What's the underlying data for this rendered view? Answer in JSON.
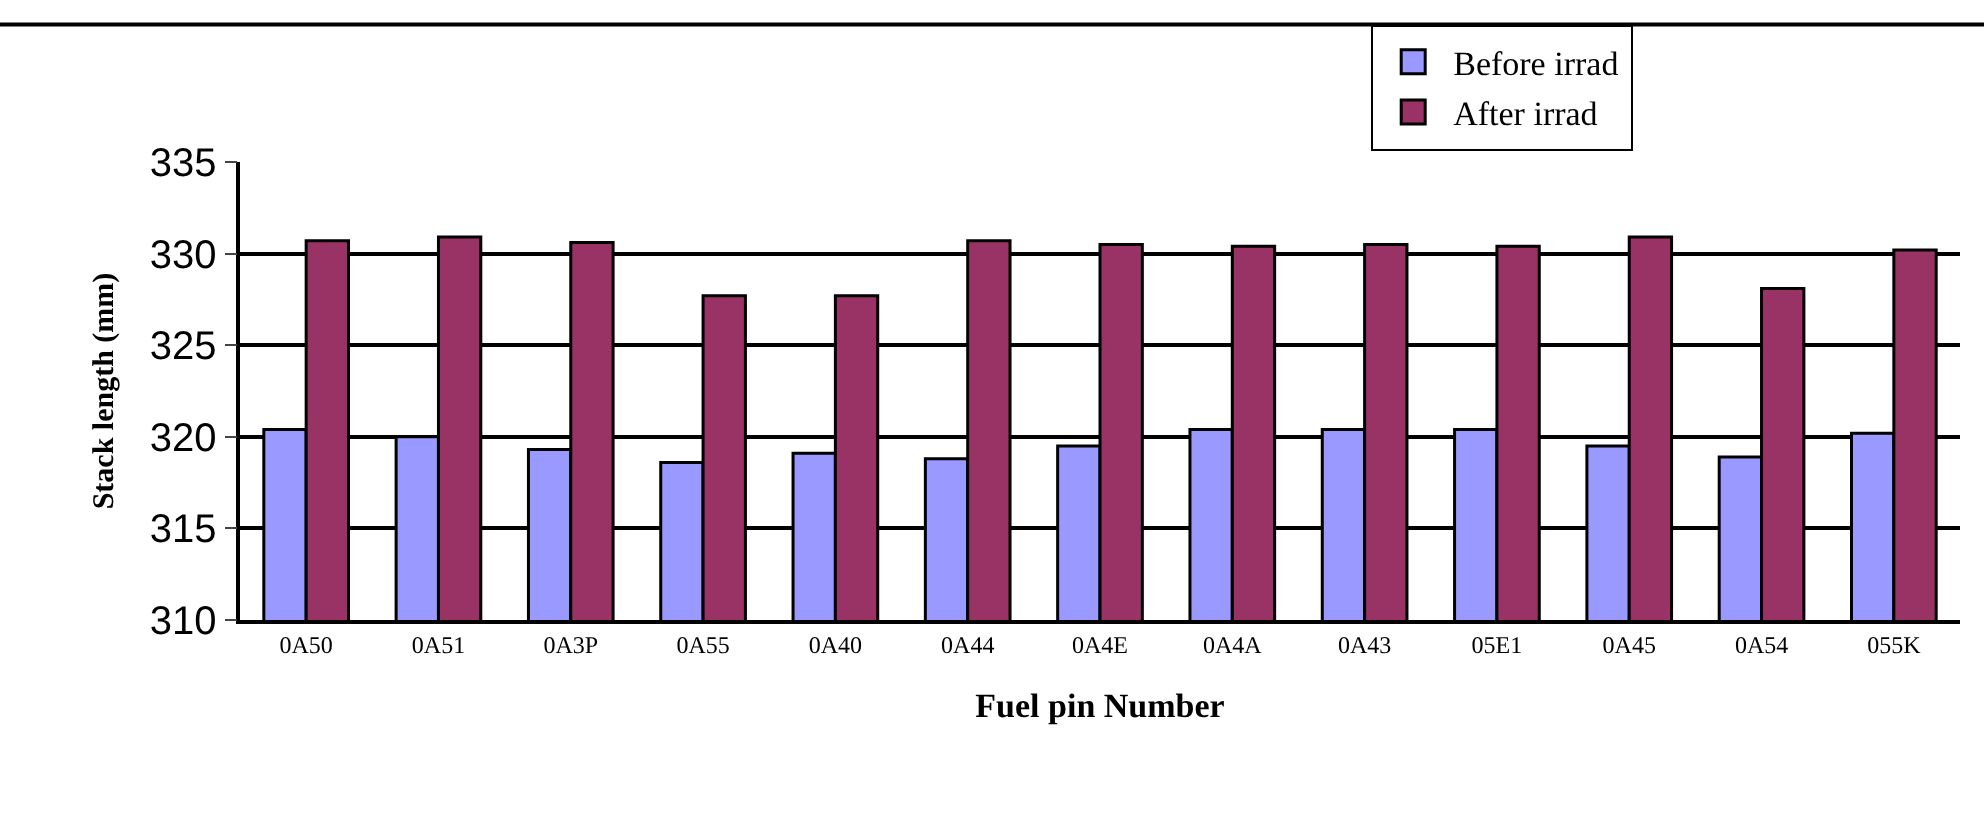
{
  "chart_data": {
    "type": "bar",
    "xlabel": "Fuel pin Number",
    "ylabel": "Stack length (mm)",
    "categories": [
      "0A50",
      "0A51",
      "0A3P",
      "0A55",
      "0A40",
      "0A44",
      "0A4E",
      "0A4A",
      "0A43",
      "05E1",
      "0A45",
      "0A54",
      "055K"
    ],
    "series": [
      {
        "name": "Before irrad",
        "color": "#9999ff",
        "values": [
          320.4,
          320.0,
          319.3,
          318.6,
          319.1,
          318.8,
          319.5,
          320.4,
          320.4,
          320.4,
          319.5,
          318.9,
          320.2
        ]
      },
      {
        "name": "After irrad",
        "color": "#993366",
        "values": [
          330.7,
          330.9,
          330.6,
          327.7,
          327.7,
          330.7,
          330.5,
          330.4,
          330.5,
          330.4,
          330.9,
          328.1,
          330.2
        ]
      }
    ],
    "ylim": [
      310,
      335
    ],
    "yticks": [
      310,
      315,
      320,
      325,
      330,
      335
    ],
    "grid": "y",
    "legend": "top right"
  }
}
